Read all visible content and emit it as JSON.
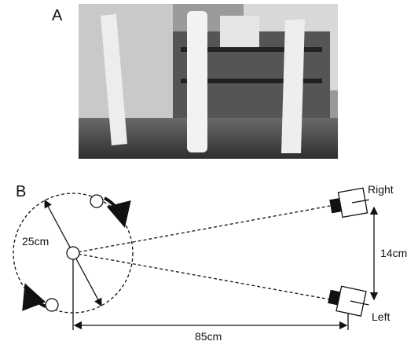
{
  "panel_a": {
    "label": "A"
  },
  "panel_b": {
    "label": "B",
    "diameter": "25cm",
    "camera_separation": "14cm",
    "distance": "85cm",
    "camera_right": "Right",
    "camera_left": "Left"
  }
}
